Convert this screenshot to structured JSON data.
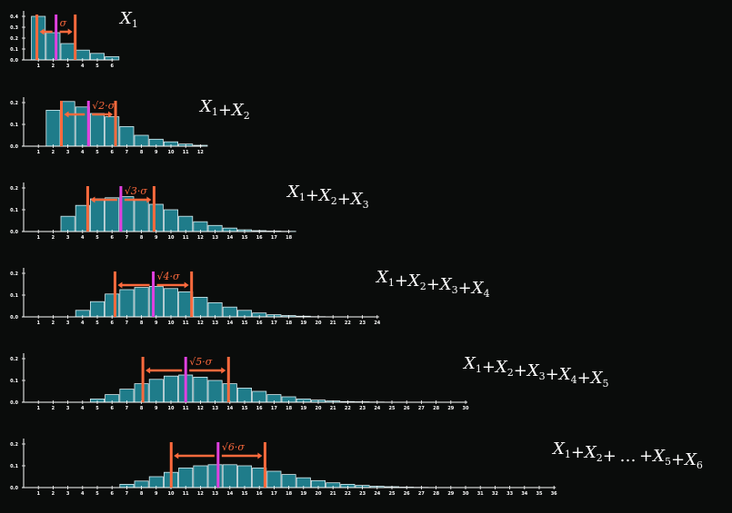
{
  "chart_data": [
    {
      "type": "bar",
      "label_parts": [
        [
          "X",
          "1"
        ]
      ],
      "sigma_label": "σ",
      "ytick_labels": [
        "0.0",
        "0.1",
        "0.2",
        "0.3",
        "0.4"
      ],
      "ylim": [
        0,
        0.4
      ],
      "categories": [
        1,
        2,
        3,
        4,
        5,
        6
      ],
      "values": [
        0.4,
        0.25,
        0.15,
        0.09,
        0.06,
        0.03
      ],
      "mean": 2.2,
      "sigma": 1.3,
      "colors": {
        "bar": "#1f7c8a",
        "bar_edge": "#d9eef2",
        "mean": "#e040e0",
        "sigma": "#ff6a3d",
        "axis": "#ffffff"
      }
    },
    {
      "type": "bar",
      "label_parts": [
        [
          "X",
          "1"
        ],
        [
          "X",
          "2"
        ]
      ],
      "sigma_label": "√2·σ",
      "ytick_labels": [
        "0.0",
        "0.1",
        "0.2"
      ],
      "ylim": [
        0,
        0.2
      ],
      "categories": [
        1,
        2,
        3,
        4,
        5,
        6,
        7,
        8,
        9,
        10,
        11,
        12
      ],
      "values": [
        0,
        0.165,
        0.205,
        0.18,
        0.15,
        0.135,
        0.09,
        0.05,
        0.032,
        0.02,
        0.01,
        0.004
      ],
      "mean": 4.4,
      "sigma": 1.838
    },
    {
      "type": "bar",
      "label_parts": [
        [
          "X",
          "1"
        ],
        [
          "X",
          "2"
        ],
        [
          "X",
          "3"
        ]
      ],
      "sigma_label": "√3·σ",
      "ytick_labels": [
        "0.0",
        "0.1",
        "0.2"
      ],
      "ylim": [
        0,
        0.2
      ],
      "categories": [
        1,
        2,
        3,
        4,
        5,
        6,
        7,
        8,
        9,
        10,
        11,
        12,
        13,
        14,
        15,
        16,
        17,
        18
      ],
      "values": [
        0,
        0,
        0.07,
        0.12,
        0.15,
        0.155,
        0.16,
        0.145,
        0.125,
        0.1,
        0.07,
        0.045,
        0.028,
        0.016,
        0.008,
        0.004,
        0.002,
        0.001
      ],
      "mean": 6.6,
      "sigma": 2.252
    },
    {
      "type": "bar",
      "label_parts": [
        [
          "X",
          "1"
        ],
        [
          "X",
          "2"
        ],
        [
          "X",
          "3"
        ],
        [
          "X",
          "4"
        ]
      ],
      "sigma_label": "√4·σ",
      "ytick_labels": [
        "0.0",
        "0.1",
        "0.2"
      ],
      "ylim": [
        0,
        0.2
      ],
      "categories": [
        1,
        2,
        3,
        4,
        5,
        6,
        7,
        8,
        9,
        10,
        11,
        12,
        13,
        14,
        15,
        16,
        17,
        18,
        19,
        20,
        21,
        22,
        23,
        24
      ],
      "values": [
        0,
        0,
        0,
        0.03,
        0.07,
        0.105,
        0.125,
        0.135,
        0.14,
        0.13,
        0.115,
        0.09,
        0.065,
        0.045,
        0.03,
        0.018,
        0.01,
        0.006,
        0.003,
        0.001,
        0,
        0,
        0,
        0
      ],
      "mean": 8.8,
      "sigma": 2.6
    },
    {
      "type": "bar",
      "label_parts": [
        [
          "X",
          "1"
        ],
        [
          "X",
          "2"
        ],
        [
          "X",
          "3"
        ],
        [
          "X",
          "4"
        ],
        [
          "X",
          "5"
        ]
      ],
      "sigma_label": "√5·σ",
      "ytick_labels": [
        "0.0",
        "0.1",
        "0.2"
      ],
      "ylim": [
        0,
        0.2
      ],
      "categories": [
        1,
        2,
        3,
        4,
        5,
        6,
        7,
        8,
        9,
        10,
        11,
        12,
        13,
        14,
        15,
        16,
        17,
        18,
        19,
        20,
        21,
        22,
        23,
        24,
        25,
        26,
        27,
        28,
        29,
        30
      ],
      "values": [
        0,
        0,
        0,
        0,
        0.015,
        0.035,
        0.06,
        0.085,
        0.105,
        0.12,
        0.125,
        0.115,
        0.1,
        0.085,
        0.065,
        0.05,
        0.035,
        0.025,
        0.015,
        0.01,
        0.006,
        0.003,
        0.002,
        0.001,
        0,
        0,
        0,
        0,
        0,
        0
      ],
      "mean": 11.0,
      "sigma": 2.907
    },
    {
      "type": "bar",
      "label_parts": [
        [
          "X",
          "1"
        ],
        [
          "X",
          "2"
        ],
        "…",
        [
          "X",
          "5"
        ],
        [
          "X",
          "6"
        ]
      ],
      "sigma_label": "√6·σ",
      "ytick_labels": [
        "0.0",
        "0.1",
        "0.2"
      ],
      "ylim": [
        0,
        0.2
      ],
      "categories": [
        1,
        2,
        3,
        4,
        5,
        6,
        7,
        8,
        9,
        10,
        11,
        12,
        13,
        14,
        15,
        16,
        17,
        18,
        19,
        20,
        21,
        22,
        23,
        24,
        25,
        26,
        27,
        28,
        29,
        30,
        31,
        32,
        33,
        34,
        35,
        36
      ],
      "values": [
        0,
        0,
        0,
        0,
        0,
        0,
        0.015,
        0.03,
        0.05,
        0.07,
        0.09,
        0.1,
        0.105,
        0.105,
        0.1,
        0.09,
        0.075,
        0.06,
        0.045,
        0.032,
        0.022,
        0.015,
        0.01,
        0.006,
        0.004,
        0.002,
        0.001,
        0,
        0,
        0,
        0,
        0,
        0,
        0,
        0,
        0
      ],
      "mean": 13.2,
      "sigma": 3.184
    }
  ]
}
